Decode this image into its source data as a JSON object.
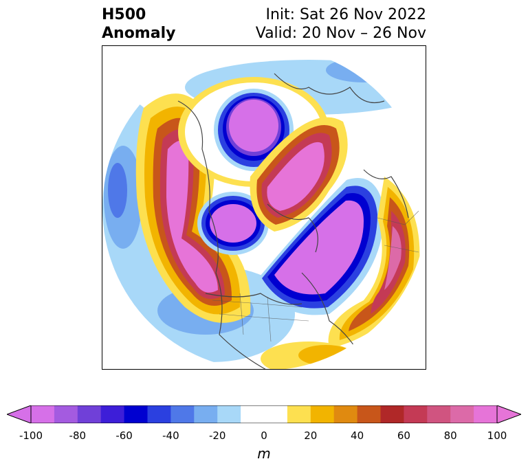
{
  "title": {
    "left_line1": "H500",
    "left_line2": "Anomaly",
    "right_line1": "Init: Sat 26 Nov 2022",
    "right_line2": "Valid: 20 Nov – 26 Nov"
  },
  "map": {
    "projection": "polar stereographic (Northern Hemisphere)",
    "field": "500 hPa geopotential height anomaly"
  },
  "colorbar": {
    "unit": "m",
    "min": -100,
    "max": 100,
    "step": 10,
    "tick_labels": [
      "-100",
      "-80",
      "-60",
      "-40",
      "-20",
      "0",
      "20",
      "40",
      "60",
      "80",
      "100"
    ],
    "extend": "both",
    "colors": [
      "#d670e8",
      "#a45be0",
      "#7040d8",
      "#3d1ed8",
      "#0000d0",
      "#2b40e0",
      "#4f78e8",
      "#78aef0",
      "#a8d8f8",
      "#ffffff",
      "#ffffff",
      "#fde050",
      "#f2b400",
      "#e08a10",
      "#c8561a",
      "#b02828",
      "#c43a55",
      "#d05480",
      "#dc6aa8",
      "#e674d8"
    ]
  }
}
